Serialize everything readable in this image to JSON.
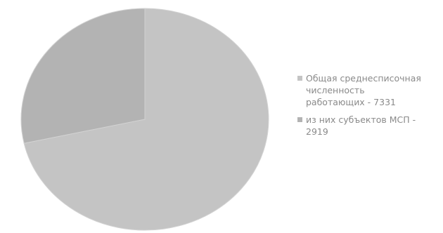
{
  "chart_data": {
    "type": "pie",
    "title": "",
    "categories": [
      "Общая среднесписочная численность работающих - 7331",
      "из них субъектов МСП - 2919"
    ],
    "values": [
      7331,
      2919
    ],
    "legend": {
      "placement": "right",
      "entries": [
        {
          "line1": "Общая среднесписочная",
          "line2": "численность",
          "line3": "работающих - 7331"
        },
        {
          "line1": "из них субъектов МСП -",
          "line2": "2919"
        }
      ]
    },
    "colors": [
      "#c4c4c4",
      "#b3b3b3"
    ]
  }
}
